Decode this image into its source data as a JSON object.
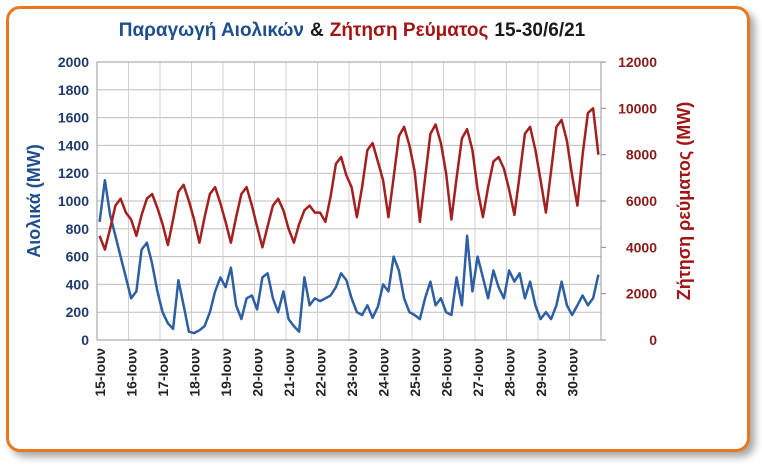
{
  "chart_data": {
    "type": "line",
    "title": [
      "Παραγωγή Αιολικών",
      "&",
      "Ζήτηση Ρεύματος",
      "15-30/6/21"
    ],
    "title_colors": [
      "#1f4e8c",
      "#1a1a1a",
      "#a31515",
      "#1a1a1a"
    ],
    "ylabel": "Αιολικά (MW)",
    "y2label": "Ζήτηση ρεύματος (MW)",
    "categories": [
      "15-Ιουν",
      null,
      null,
      null,
      null,
      null,
      "16-Ιουν",
      null,
      null,
      null,
      null,
      null,
      "17-Ιουν",
      null,
      null,
      null,
      null,
      null,
      "18-Ιουν",
      null,
      null,
      null,
      null,
      null,
      "19-Ιουν",
      null,
      null,
      null,
      null,
      null,
      "20-Ιουν",
      null,
      null,
      null,
      null,
      null,
      "21-Ιουν",
      null,
      null,
      null,
      null,
      null,
      "22-Ιουν",
      null,
      null,
      null,
      null,
      null,
      "23-Ιουν",
      null,
      null,
      null,
      null,
      null,
      "24-Ιουν",
      null,
      null,
      null,
      null,
      null,
      "25-Ιουν",
      null,
      null,
      null,
      null,
      null,
      "26-Ιουν",
      null,
      null,
      null,
      null,
      null,
      "27-Ιουν",
      null,
      null,
      null,
      null,
      null,
      "28-Ιουν",
      null,
      null,
      null,
      null,
      null,
      "29-Ιουν",
      null,
      null,
      null,
      null,
      null,
      "30-Ιουν",
      null,
      null,
      null,
      null,
      null
    ],
    "series": [
      {
        "name": "Αιολικά",
        "color": "#2e5fa3",
        "axis": "y",
        "values": [
          850,
          1150,
          900,
          750,
          600,
          450,
          300,
          350,
          650,
          700,
          550,
          350,
          200,
          120,
          80,
          430,
          250,
          60,
          50,
          70,
          100,
          200,
          350,
          450,
          380,
          520,
          250,
          150,
          300,
          320,
          220,
          450,
          480,
          300,
          200,
          350,
          150,
          100,
          60,
          450,
          250,
          300,
          280,
          300,
          320,
          380,
          480,
          430,
          300,
          200,
          180,
          250,
          160,
          240,
          400,
          350,
          600,
          500,
          300,
          200,
          180,
          150,
          300,
          420,
          250,
          300,
          200,
          180,
          450,
          250,
          750,
          350,
          600,
          450,
          300,
          500,
          380,
          300,
          500,
          420,
          480,
          300,
          420,
          250,
          150,
          200,
          150,
          250,
          420,
          250,
          180,
          250,
          320,
          250,
          300,
          470
        ]
      },
      {
        "name": "Ζήτηση Ρεύματος",
        "color": "#a32020",
        "axis": "y2",
        "values": [
          4500,
          3900,
          4800,
          5800,
          6100,
          5500,
          5200,
          4500,
          5400,
          6100,
          6300,
          5700,
          5000,
          4100,
          5200,
          6400,
          6700,
          6000,
          5200,
          4200,
          5300,
          6300,
          6600,
          5900,
          5100,
          4200,
          5300,
          6300,
          6600,
          5800,
          4900,
          4000,
          4900,
          5800,
          6100,
          5600,
          4800,
          4200,
          5000,
          5600,
          5800,
          5500,
          5500,
          5100,
          6200,
          7600,
          7900,
          7100,
          6600,
          5300,
          6600,
          8200,
          8500,
          7700,
          6900,
          5300,
          7000,
          8800,
          9200,
          8400,
          7300,
          5100,
          7000,
          8900,
          9300,
          8500,
          7200,
          5200,
          7000,
          8700,
          9100,
          8200,
          6500,
          5300,
          6600,
          7700,
          7900,
          7400,
          6500,
          5400,
          7100,
          8900,
          9200,
          8200,
          6900,
          5500,
          7300,
          9200,
          9500,
          8600,
          7100,
          5800,
          8000,
          9800,
          10000,
          8000
        ]
      }
    ],
    "ylim": [
      0,
      2000
    ],
    "yticks": [
      0,
      200,
      400,
      600,
      800,
      1000,
      1200,
      1400,
      1600,
      1800,
      2000
    ],
    "y2lim": [
      0,
      12000
    ],
    "y2ticks": [
      0,
      2000,
      4000,
      6000,
      8000,
      10000,
      12000
    ],
    "grid": true
  }
}
